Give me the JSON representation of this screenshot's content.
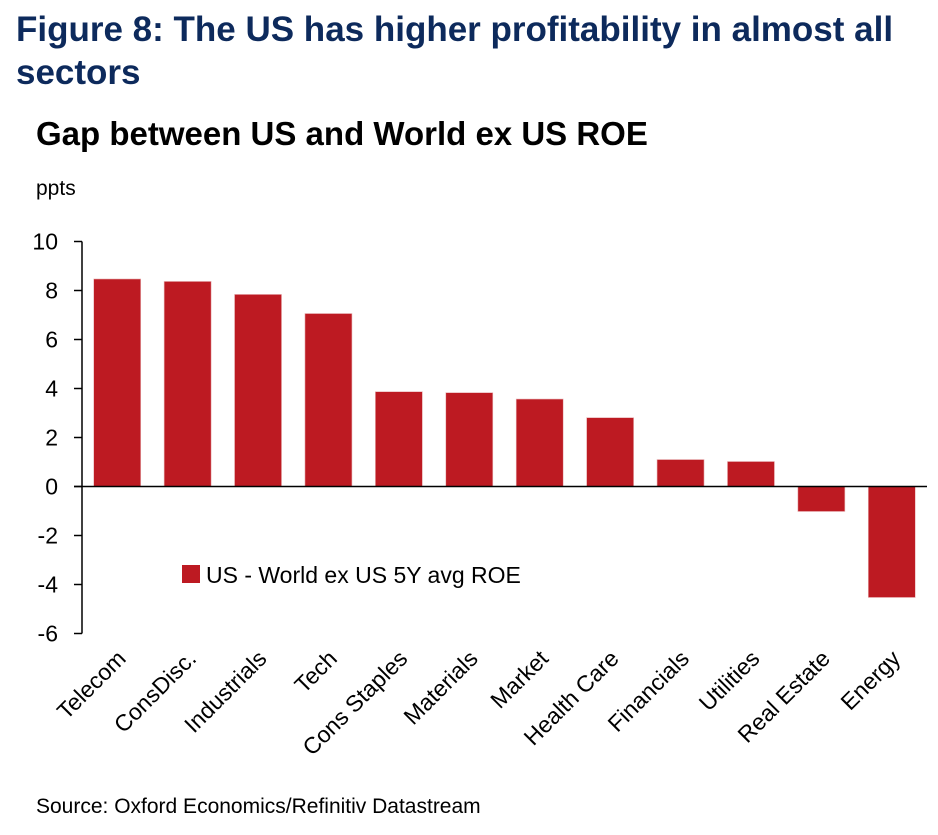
{
  "figure": {
    "title": "Figure 8: The US has higher profitability in almost all sectors",
    "source": "Source: Oxford Economics/Refinitiv Datastream",
    "colors": {
      "title": "#0d2a5c",
      "bar": "#bd1a22"
    }
  },
  "chart_data": {
    "type": "bar",
    "title": "Gap between US and World ex US ROE",
    "ylabel": "ppts",
    "xlabel": "",
    "categories": [
      "Telecom",
      "ConsDisc.",
      "Industrials",
      "Tech",
      "Cons Staples",
      "Materials",
      "Market",
      "Health Care",
      "Financials",
      "Utilities",
      "Real Estate",
      "Energy"
    ],
    "series": [
      {
        "name": "US - World ex US 5Y avg ROE",
        "color": "#bd1a22",
        "values": [
          8.47,
          8.37,
          7.84,
          7.06,
          3.87,
          3.83,
          3.57,
          2.81,
          1.1,
          1.02,
          -1.02,
          -4.53
        ]
      }
    ],
    "ylim": [
      -6,
      10
    ],
    "yticks": [
      10,
      8,
      6,
      4,
      2,
      0,
      -2,
      -4,
      -6
    ],
    "grid": false,
    "legend": {
      "position": "lower-left inside plot",
      "entries": [
        "US - World ex US 5Y avg ROE"
      ]
    }
  }
}
